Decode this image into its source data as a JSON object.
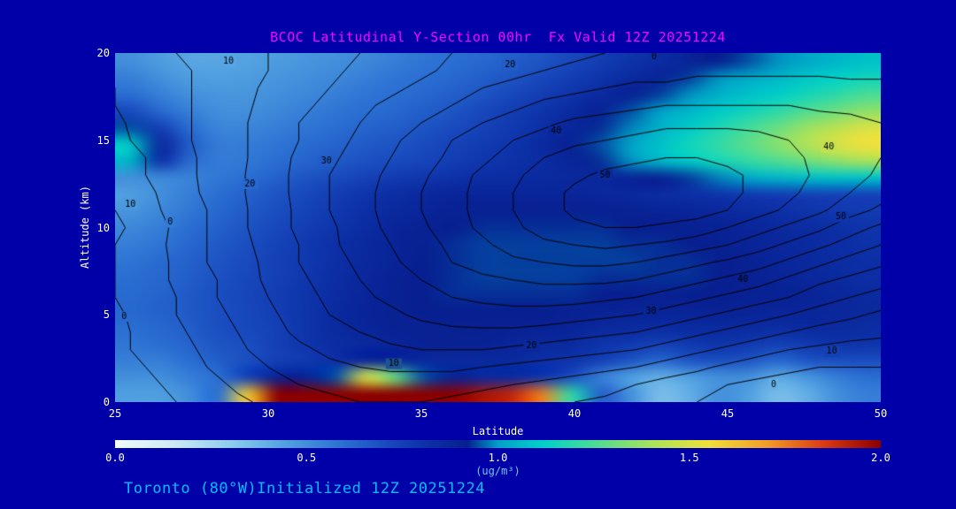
{
  "colors": {
    "background": "#0000A8",
    "title": "#FF00FF",
    "footer": "#00BFFF",
    "axis_text": "#FFFFFF",
    "units_label": "#6FC8F0",
    "contour_line": "#000000"
  },
  "title": {
    "text": "BCOC Latitudinal Y-Section 00hr  Fx Valid 12Z 20251224"
  },
  "footer": {
    "text": "Toronto (80°W)Initialized 12Z 20251224"
  },
  "chart_data": {
    "type": "heatmap",
    "title": "BCOC Latitudinal Y-Section 00hr  Fx Valid 12Z 20251224",
    "subtitle": "Toronto (80°W)Initialized 12Z 20251224",
    "x": {
      "label": "Latitude",
      "min": 25,
      "max": 50,
      "ticks": [
        25,
        30,
        35,
        40,
        45,
        50
      ]
    },
    "y": {
      "label": "Altitude (km)",
      "min": 0,
      "max": 20,
      "ticks": [
        0,
        5,
        10,
        15,
        20
      ]
    },
    "colorbar": {
      "min": 0.0,
      "max": 2.0,
      "tick_labels": [
        "0.0",
        "0.5",
        "1.0",
        "1.5",
        "2.0"
      ],
      "tick_values": [
        0.0,
        0.5,
        1.0,
        1.5,
        2.0
      ],
      "label": "(ug/m³)",
      "stops": [
        [
          0.0,
          "#f2fbff"
        ],
        [
          0.15,
          "#cdeaf8"
        ],
        [
          0.3,
          "#8fcdee"
        ],
        [
          0.45,
          "#4f9fe0"
        ],
        [
          0.6,
          "#2a6ed2"
        ],
        [
          0.72,
          "#1747bc"
        ],
        [
          0.82,
          "#0c2fa6"
        ],
        [
          0.92,
          "#071f90"
        ],
        [
          1.0,
          "#00a0c8"
        ],
        [
          1.12,
          "#00d2c8"
        ],
        [
          1.25,
          "#49dc96"
        ],
        [
          1.4,
          "#a8e25a"
        ],
        [
          1.55,
          "#f0e03c"
        ],
        [
          1.7,
          "#f0a028"
        ],
        [
          1.85,
          "#dc3c14"
        ],
        [
          2.0,
          "#8b0000"
        ]
      ]
    },
    "fill_grid_note": "rows are altitude 0..20 km bottom-to-top, cols latitude 25..50, values ug/m3",
    "fill_grid": [
      [
        0.45,
        0.45,
        0.5,
        0.6,
        1.6,
        2.0,
        2.0,
        2.0,
        2.0,
        2.0,
        2.0,
        2.0,
        1.95,
        1.9,
        1.75,
        1.2,
        0.65,
        0.5,
        0.35,
        0.4,
        0.5,
        0.45,
        0.35,
        0.4,
        0.5,
        0.55
      ],
      [
        0.5,
        0.5,
        0.55,
        0.6,
        0.75,
        0.9,
        0.9,
        0.95,
        1.5,
        1.3,
        0.95,
        0.9,
        0.85,
        0.85,
        0.8,
        0.7,
        0.55,
        0.45,
        0.4,
        0.45,
        0.5,
        0.5,
        0.42,
        0.48,
        0.55,
        0.6
      ],
      [
        0.55,
        0.55,
        0.6,
        0.65,
        0.7,
        0.75,
        0.78,
        0.82,
        0.88,
        0.88,
        0.86,
        0.86,
        0.86,
        0.86,
        0.82,
        0.8,
        0.75,
        0.68,
        0.62,
        0.68,
        0.7,
        0.68,
        0.62,
        0.68,
        0.7,
        0.7
      ],
      [
        0.58,
        0.6,
        0.63,
        0.68,
        0.7,
        0.75,
        0.8,
        0.84,
        0.86,
        0.88,
        0.9,
        0.9,
        0.9,
        0.88,
        0.86,
        0.85,
        0.8,
        0.78,
        0.75,
        0.78,
        0.8,
        0.78,
        0.75,
        0.78,
        0.8,
        0.8
      ],
      [
        0.6,
        0.62,
        0.65,
        0.7,
        0.72,
        0.75,
        0.8,
        0.85,
        0.88,
        0.9,
        0.9,
        0.91,
        0.91,
        0.9,
        0.9,
        0.89,
        0.86,
        0.85,
        0.84,
        0.85,
        0.85,
        0.85,
        0.84,
        0.85,
        0.85,
        0.84
      ],
      [
        0.62,
        0.64,
        0.66,
        0.7,
        0.72,
        0.76,
        0.8,
        0.85,
        0.89,
        0.9,
        0.92,
        0.92,
        0.92,
        0.92,
        0.92,
        0.91,
        0.9,
        0.89,
        0.89,
        0.89,
        0.9,
        0.89,
        0.88,
        0.88,
        0.87,
        0.86
      ],
      [
        0.61,
        0.63,
        0.66,
        0.7,
        0.73,
        0.76,
        0.8,
        0.84,
        0.88,
        0.9,
        0.92,
        0.93,
        0.93,
        0.93,
        0.93,
        0.93,
        0.92,
        0.92,
        0.91,
        0.92,
        0.92,
        0.91,
        0.9,
        0.89,
        0.87,
        0.85
      ],
      [
        0.6,
        0.62,
        0.65,
        0.69,
        0.72,
        0.75,
        0.79,
        0.83,
        0.87,
        0.9,
        0.92,
        0.93,
        0.94,
        0.94,
        0.94,
        0.94,
        0.93,
        0.93,
        0.93,
        0.93,
        0.92,
        0.91,
        0.89,
        0.87,
        0.85,
        0.83
      ],
      [
        0.58,
        0.61,
        0.64,
        0.68,
        0.71,
        0.75,
        0.78,
        0.82,
        0.86,
        0.89,
        0.92,
        0.93,
        0.94,
        0.94,
        0.94,
        0.94,
        0.94,
        0.94,
        0.93,
        0.93,
        0.92,
        0.9,
        0.88,
        0.86,
        0.84,
        0.82
      ],
      [
        0.55,
        0.58,
        0.62,
        0.66,
        0.7,
        0.74,
        0.78,
        0.82,
        0.86,
        0.89,
        0.91,
        0.93,
        0.94,
        0.94,
        0.94,
        0.94,
        0.94,
        0.93,
        0.93,
        0.92,
        0.91,
        0.89,
        0.87,
        0.85,
        0.83,
        0.81
      ],
      [
        0.52,
        0.55,
        0.6,
        0.64,
        0.68,
        0.72,
        0.76,
        0.8,
        0.84,
        0.88,
        0.9,
        0.92,
        0.93,
        0.93,
        0.93,
        0.93,
        0.93,
        0.92,
        0.92,
        0.91,
        0.9,
        0.88,
        0.86,
        0.84,
        0.82,
        0.8
      ],
      [
        0.48,
        0.52,
        0.57,
        0.62,
        0.66,
        0.7,
        0.74,
        0.78,
        0.82,
        0.86,
        0.88,
        0.9,
        0.91,
        0.91,
        0.91,
        0.91,
        0.91,
        0.9,
        0.89,
        0.88,
        0.86,
        0.84,
        0.82,
        0.8,
        0.78,
        0.77
      ],
      [
        0.45,
        0.5,
        0.55,
        0.6,
        0.64,
        0.68,
        0.72,
        0.76,
        0.8,
        0.83,
        0.86,
        0.88,
        0.88,
        0.88,
        0.88,
        0.88,
        0.87,
        0.86,
        0.84,
        0.82,
        0.8,
        0.78,
        0.76,
        0.75,
        0.74,
        0.74
      ],
      [
        0.5,
        0.52,
        0.54,
        0.57,
        0.6,
        0.64,
        0.68,
        0.71,
        0.74,
        0.77,
        0.79,
        0.81,
        0.83,
        0.84,
        0.85,
        0.86,
        0.87,
        0.89,
        0.91,
        0.94,
        0.98,
        1.02,
        1.05,
        1.07,
        1.08,
        1.08
      ],
      [
        1.05,
        0.82,
        0.62,
        0.56,
        0.57,
        0.6,
        0.63,
        0.66,
        0.69,
        0.71,
        0.73,
        0.76,
        0.79,
        0.81,
        0.84,
        0.88,
        0.93,
        0.99,
        1.05,
        1.1,
        1.16,
        1.21,
        1.26,
        1.31,
        1.36,
        1.4
      ],
      [
        1.1,
        0.86,
        0.66,
        0.56,
        0.56,
        0.58,
        0.61,
        0.63,
        0.66,
        0.68,
        0.71,
        0.74,
        0.77,
        0.8,
        0.85,
        0.9,
        0.95,
        1.01,
        1.08,
        1.15,
        1.21,
        1.28,
        1.35,
        1.42,
        1.5,
        1.55
      ],
      [
        0.95,
        0.76,
        0.61,
        0.53,
        0.53,
        0.55,
        0.58,
        0.6,
        0.63,
        0.65,
        0.68,
        0.71,
        0.74,
        0.78,
        0.82,
        0.88,
        0.93,
        0.98,
        1.04,
        1.1,
        1.17,
        1.24,
        1.3,
        1.38,
        1.44,
        1.5
      ],
      [
        0.72,
        0.62,
        0.55,
        0.5,
        0.5,
        0.52,
        0.55,
        0.58,
        0.6,
        0.62,
        0.65,
        0.68,
        0.72,
        0.76,
        0.8,
        0.85,
        0.9,
        0.95,
        1.0,
        1.05,
        1.1,
        1.15,
        1.2,
        1.26,
        1.31,
        1.36
      ],
      [
        0.6,
        0.55,
        0.5,
        0.48,
        0.48,
        0.5,
        0.52,
        0.55,
        0.58,
        0.6,
        0.62,
        0.65,
        0.68,
        0.72,
        0.76,
        0.8,
        0.85,
        0.9,
        0.94,
        0.99,
        1.04,
        1.08,
        1.11,
        1.16,
        1.2,
        1.25
      ],
      [
        0.55,
        0.5,
        0.46,
        0.45,
        0.46,
        0.48,
        0.5,
        0.52,
        0.55,
        0.58,
        0.6,
        0.62,
        0.65,
        0.68,
        0.72,
        0.76,
        0.8,
        0.85,
        0.89,
        0.94,
        0.99,
        1.02,
        1.05,
        1.09,
        1.12,
        1.15
      ],
      [
        0.5,
        0.46,
        0.43,
        0.43,
        0.44,
        0.46,
        0.48,
        0.5,
        0.52,
        0.55,
        0.58,
        0.6,
        0.62,
        0.65,
        0.68,
        0.72,
        0.76,
        0.8,
        0.84,
        0.89,
        0.92,
        0.95,
        0.99,
        1.02,
        1.05,
        1.08
      ]
    ],
    "contours": {
      "levels": [
        0,
        5,
        10,
        15,
        20,
        25,
        30,
        35,
        40,
        45,
        50
      ],
      "labeled_levels": [
        0,
        10,
        20,
        30,
        40,
        50
      ],
      "grid": [
        [
          -3,
          -2,
          0,
          2,
          4,
          6,
          8,
          9,
          10,
          10,
          10,
          9,
          8,
          7,
          6,
          5,
          4,
          3,
          1,
          0,
          -1,
          -2,
          -3,
          -3,
          -3,
          -3
        ],
        [
          -2,
          -1,
          1,
          3,
          6,
          8,
          10,
          11,
          12,
          12,
          12,
          12,
          11,
          10,
          9,
          8,
          7,
          5,
          3,
          2,
          0,
          -1,
          -2,
          -2,
          -2,
          -2
        ],
        [
          -1,
          0,
          2,
          5,
          8,
          10,
          12,
          14,
          15,
          16,
          16,
          16,
          15,
          14,
          13,
          12,
          11,
          10,
          8,
          6,
          4,
          2,
          1,
          0,
          0,
          0
        ],
        [
          -1,
          1,
          3,
          6,
          9,
          12,
          14,
          16,
          18,
          19,
          20,
          20,
          20,
          19,
          18,
          17,
          16,
          15,
          13,
          11,
          9,
          7,
          5,
          4,
          3,
          3
        ],
        [
          -1,
          1,
          4,
          7,
          10,
          13,
          16,
          18,
          20,
          22,
          23,
          24,
          24,
          24,
          23,
          22,
          21,
          20,
          18,
          16,
          14,
          12,
          10,
          8,
          7,
          6
        ],
        [
          -1,
          2,
          5,
          8,
          11,
          14,
          17,
          20,
          22,
          24,
          26,
          27,
          28,
          28,
          28,
          27,
          26,
          25,
          23,
          21,
          19,
          17,
          15,
          13,
          11,
          9
        ],
        [
          0,
          2,
          5,
          9,
          12,
          15,
          18,
          21,
          24,
          26,
          28,
          30,
          31,
          32,
          32,
          32,
          31,
          30,
          28,
          26,
          24,
          22,
          20,
          17,
          15,
          13
        ],
        [
          0,
          2,
          6,
          9,
          12,
          16,
          19,
          22,
          25,
          28,
          30,
          32,
          34,
          35,
          36,
          36,
          36,
          35,
          33,
          31,
          29,
          27,
          24,
          21,
          19,
          17
        ],
        [
          0,
          2,
          6,
          10,
          13,
          16,
          20,
          23,
          26,
          29,
          32,
          35,
          37,
          39,
          40,
          41,
          41,
          40,
          38,
          36,
          34,
          32,
          29,
          26,
          23,
          21
        ],
        [
          0,
          3,
          6,
          10,
          13,
          17,
          20,
          24,
          27,
          30,
          33,
          36,
          39,
          42,
          44,
          45,
          46,
          45,
          44,
          42,
          40,
          37,
          34,
          31,
          28,
          25
        ],
        [
          -1,
          2,
          6,
          10,
          14,
          17,
          21,
          24,
          28,
          31,
          34,
          38,
          41,
          44,
          47,
          49,
          50,
          50,
          49,
          48,
          45,
          42,
          39,
          36,
          32,
          29
        ],
        [
          0,
          3,
          7,
          10,
          14,
          17,
          21,
          25,
          28,
          32,
          35,
          38,
          42,
          45,
          48,
          51,
          53,
          54,
          53,
          52,
          50,
          47,
          44,
          41,
          37,
          34
        ],
        [
          1,
          4,
          7,
          11,
          14,
          18,
          21,
          25,
          28,
          32,
          35,
          38,
          42,
          45,
          48,
          51,
          53,
          54,
          54,
          53,
          51,
          49,
          46,
          43,
          40,
          37
        ],
        [
          2,
          5,
          8,
          11,
          14,
          18,
          21,
          25,
          28,
          31,
          34,
          38,
          41,
          44,
          47,
          49,
          51,
          52,
          52,
          52,
          51,
          49,
          47,
          44,
          42,
          39
        ],
        [
          3,
          5,
          8,
          11,
          14,
          17,
          21,
          24,
          27,
          30,
          33,
          36,
          39,
          42,
          45,
          47,
          48,
          49,
          50,
          50,
          49,
          48,
          46,
          44,
          42,
          40
        ],
        [
          4,
          6,
          9,
          11,
          14,
          17,
          20,
          23,
          26,
          29,
          32,
          35,
          37,
          40,
          42,
          44,
          45,
          46,
          47,
          47,
          47,
          46,
          45,
          44,
          42,
          41
        ],
        [
          4,
          7,
          9,
          11,
          14,
          17,
          20,
          22,
          25,
          28,
          30,
          33,
          35,
          37,
          39,
          41,
          42,
          43,
          44,
          44,
          44,
          44,
          43,
          42,
          41,
          40
        ],
        [
          5,
          7,
          9,
          11,
          14,
          16,
          19,
          21,
          24,
          26,
          28,
          30,
          32,
          34,
          36,
          37,
          38,
          39,
          40,
          40,
          40,
          40,
          40,
          39,
          39,
          38
        ],
        [
          5,
          7,
          9,
          11,
          13,
          16,
          18,
          20,
          22,
          24,
          26,
          28,
          30,
          31,
          33,
          34,
          35,
          36,
          36,
          37,
          37,
          37,
          37,
          37,
          36,
          36
        ],
        [
          6,
          8,
          9,
          11,
          13,
          15,
          17,
          19,
          21,
          23,
          24,
          26,
          27,
          29,
          30,
          31,
          32,
          33,
          33,
          34,
          34,
          34,
          34,
          34,
          34,
          34
        ],
        [
          6,
          8,
          10,
          11,
          13,
          15,
          17,
          18,
          20,
          22,
          23,
          25,
          26,
          27,
          28,
          29,
          30,
          31,
          31,
          32,
          32,
          32,
          32,
          32,
          32,
          32
        ]
      ],
      "labels": [
        {
          "text": "10",
          "lat": 28.7,
          "alt": 19.5
        },
        {
          "text": "20",
          "lat": 37.9,
          "alt": 19.3
        },
        {
          "text": "0",
          "lat": 42.6,
          "alt": 19.8
        },
        {
          "text": "40",
          "lat": 39.4,
          "alt": 15.5
        },
        {
          "text": "40",
          "lat": 48.3,
          "alt": 14.6
        },
        {
          "text": "30",
          "lat": 31.9,
          "alt": 13.8
        },
        {
          "text": "50",
          "lat": 41.0,
          "alt": 13.0
        },
        {
          "text": "20",
          "lat": 29.4,
          "alt": 12.5
        },
        {
          "text": "10",
          "lat": 25.5,
          "alt": 11.3
        },
        {
          "text": "0",
          "lat": 26.8,
          "alt": 10.3
        },
        {
          "text": "50",
          "lat": 48.7,
          "alt": 10.6
        },
        {
          "text": "40",
          "lat": 45.5,
          "alt": 7.0
        },
        {
          "text": "30",
          "lat": 42.5,
          "alt": 5.2
        },
        {
          "text": "0",
          "lat": 25.3,
          "alt": 4.9
        },
        {
          "text": "20",
          "lat": 38.6,
          "alt": 3.2
        },
        {
          "text": "10",
          "lat": 34.1,
          "alt": 2.2
        },
        {
          "text": "10",
          "lat": 48.4,
          "alt": 2.9
        },
        {
          "text": "0",
          "lat": 46.5,
          "alt": 1.0
        }
      ]
    }
  }
}
